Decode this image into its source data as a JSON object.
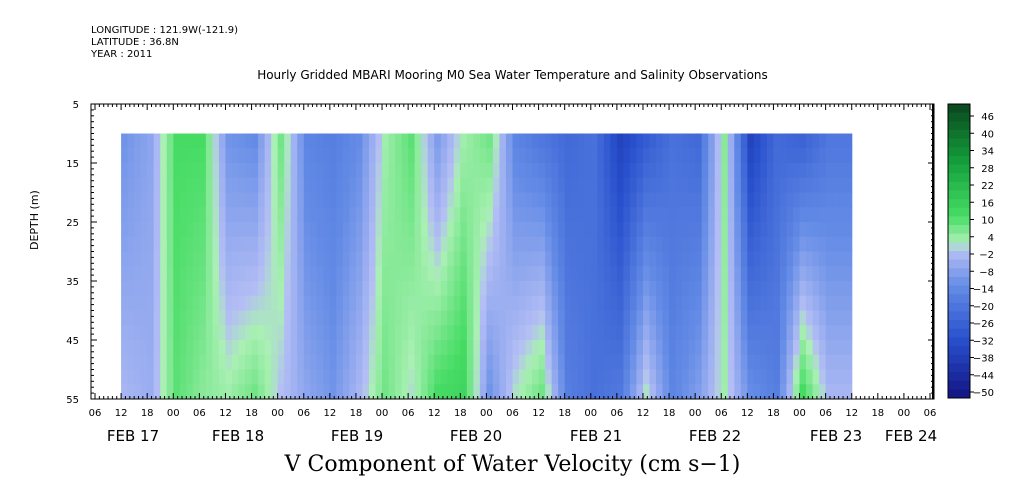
{
  "header": {
    "longitude": "LONGITUDE : 121.9W(-121.9)",
    "latitude": "LATITUDE : 36.8N",
    "year": "YEAR : 2011"
  },
  "chart_data": {
    "type": "heatmap",
    "title": "Hourly Gridded MBARI Mooring M0 Sea Water Temperature and Salinity Observations",
    "subtitle": "V Component of Water Velocity (cm s−1)",
    "ylabel": "DEPTH (m)",
    "xlabel": "",
    "y_axis": {
      "range": [
        5,
        55
      ],
      "inverted": true,
      "ticks": [
        5,
        15,
        25,
        35,
        45,
        55
      ],
      "data_top_depth": 10
    },
    "x_axis": {
      "hour_ticks": [
        "06",
        "12",
        "18",
        "00",
        "06",
        "12",
        "18",
        "00",
        "06",
        "12",
        "18",
        "00",
        "06",
        "12",
        "18",
        "00",
        "06",
        "12",
        "18",
        "00",
        "06",
        "12",
        "18",
        "00",
        "06",
        "12",
        "18",
        "00",
        "06",
        "12",
        "18",
        "00",
        "06"
      ],
      "day_labels": [
        "FEB 17",
        "FEB 18",
        "FEB 19",
        "FEB 20",
        "FEB 21",
        "FEB 22",
        "FEB 23",
        "FEB 24"
      ],
      "data_start": "FEB 17 12:00"
    },
    "colorbar": {
      "labels": [
        "46",
        "40",
        "34",
        "28",
        "22",
        "16",
        "10",
        "4",
        "−2",
        "−8",
        "−14",
        "−20",
        "−26",
        "−32",
        "−38",
        "−44",
        "−50"
      ],
      "min": -50,
      "max": 50
    },
    "velocity_by_time": {
      "hours_from_feb17_12": [
        0,
        6,
        12,
        18,
        24,
        30,
        36,
        42,
        48,
        54,
        60,
        66,
        72,
        78,
        84,
        90,
        96,
        102,
        108,
        114,
        120,
        126,
        132,
        138,
        144,
        150,
        156,
        162
      ],
      "surface_10m": [
        -10,
        -6,
        12,
        12,
        -10,
        -12,
        8,
        -14,
        -16,
        -12,
        4,
        10,
        -8,
        4,
        8,
        -14,
        -18,
        -22,
        -20,
        -34,
        -26,
        -20,
        -22,
        6,
        -34,
        -22,
        -24,
        -18
      ],
      "bottom_55m": [
        -2,
        -4,
        10,
        6,
        4,
        8,
        0,
        -6,
        -10,
        -2,
        8,
        2,
        12,
        14,
        -10,
        2,
        8,
        -16,
        -20,
        -18,
        2,
        -14,
        -8,
        4,
        -12,
        -16,
        12,
        -2
      ]
    }
  }
}
